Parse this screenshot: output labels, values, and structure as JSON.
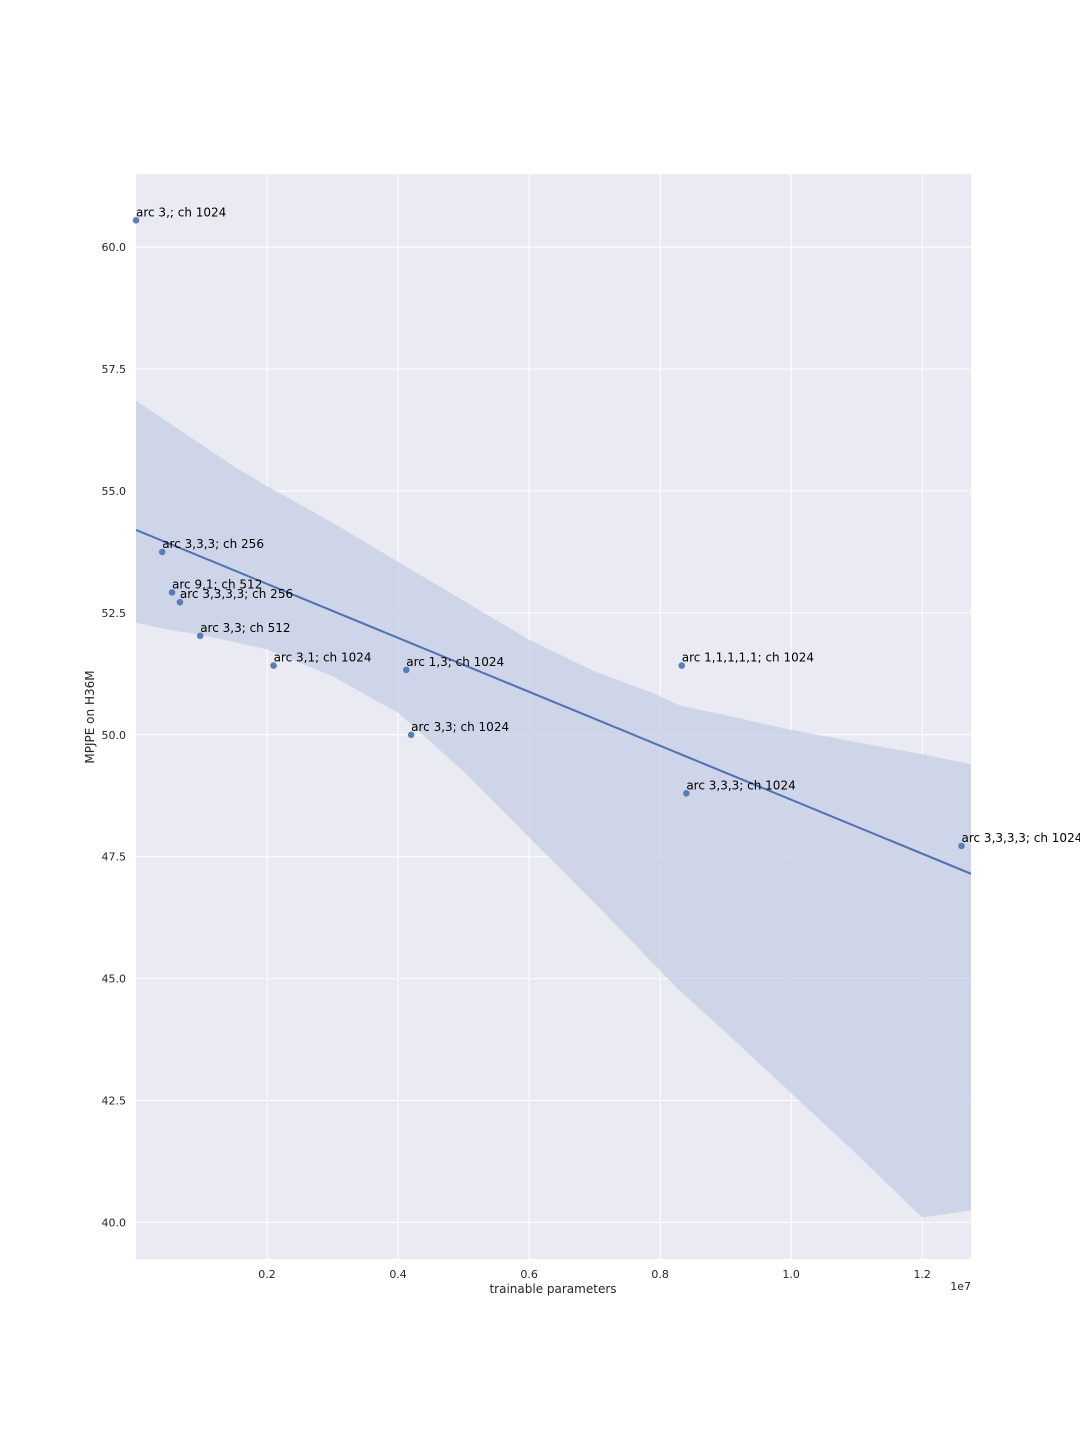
{
  "chart_data": {
    "type": "scatter",
    "title": "",
    "xlabel": "trainable parameters",
    "ylabel": "MPJPE on H36M",
    "x_offset_label": "1e7",
    "x_scale": 10000000,
    "xlim": [
      0.0,
      1.2745
    ],
    "ylim": [
      39.25,
      61.5
    ],
    "x_ticks": [
      0.2,
      0.4,
      0.6,
      0.8,
      1.0,
      1.2
    ],
    "x_tick_labels": [
      "0.2",
      "0.4",
      "0.6",
      "0.8",
      "1.0",
      "1.2"
    ],
    "y_ticks": [
      40.0,
      42.5,
      45.0,
      47.5,
      50.0,
      52.5,
      55.0,
      57.5,
      60.0
    ],
    "y_tick_labels": [
      "40.0",
      "42.5",
      "45.0",
      "47.5",
      "50.0",
      "52.5",
      "55.0",
      "57.5",
      "60.0"
    ],
    "grid": true,
    "points": [
      {
        "x": 0.0,
        "y": 60.55,
        "label": "arc 3,; ch 1024"
      },
      {
        "x": 0.04,
        "y": 53.75,
        "label": "arc 3,3,3; ch 256"
      },
      {
        "x": 0.055,
        "y": 52.92,
        "label": "arc 9,1; ch 512"
      },
      {
        "x": 0.067,
        "y": 52.72,
        "label": "arc 3,3,3,3; ch 256"
      },
      {
        "x": 0.098,
        "y": 52.03,
        "label": "arc 3,3; ch 512"
      },
      {
        "x": 0.21,
        "y": 51.42,
        "label": "arc 3,1; ch 1024"
      },
      {
        "x": 0.4125,
        "y": 51.33,
        "label": "arc 1,3; ch 1024"
      },
      {
        "x": 0.42,
        "y": 50.0,
        "label": "arc 3,3; ch 1024"
      },
      {
        "x": 0.833,
        "y": 51.42,
        "label": "arc 1,1,1,1,1; ch 1024"
      },
      {
        "x": 0.84,
        "y": 48.8,
        "label": "arc 3,3,3; ch 1024"
      },
      {
        "x": 1.26,
        "y": 47.72,
        "label": "arc 3,3,3,3; ch 1024"
      }
    ],
    "regression_line": {
      "x": [
        0.0,
        1.2745
      ],
      "y": [
        54.2,
        47.15
      ]
    },
    "confidence_band": {
      "x": [
        0.0,
        0.05,
        0.1,
        0.15,
        0.2,
        0.3,
        0.4,
        0.5,
        0.6,
        0.7,
        0.79,
        0.83,
        0.9,
        1.0,
        1.1,
        1.2,
        1.2745
      ],
      "upper": [
        56.85,
        56.4,
        55.95,
        55.5,
        55.1,
        54.35,
        53.55,
        52.75,
        51.95,
        51.3,
        50.85,
        50.6,
        50.4,
        50.1,
        49.85,
        49.6,
        49.4
      ],
      "lower": [
        52.3,
        52.15,
        52.05,
        51.9,
        51.75,
        51.2,
        50.45,
        49.25,
        47.9,
        46.55,
        45.3,
        44.75,
        43.9,
        42.65,
        41.4,
        40.1,
        40.25
      ]
    },
    "colors": {
      "plot_background": "#eaeaf2",
      "grid": "#ffffff",
      "point": "#4c72b0",
      "line": "#4c72b0",
      "band": "#c6cde6"
    }
  }
}
